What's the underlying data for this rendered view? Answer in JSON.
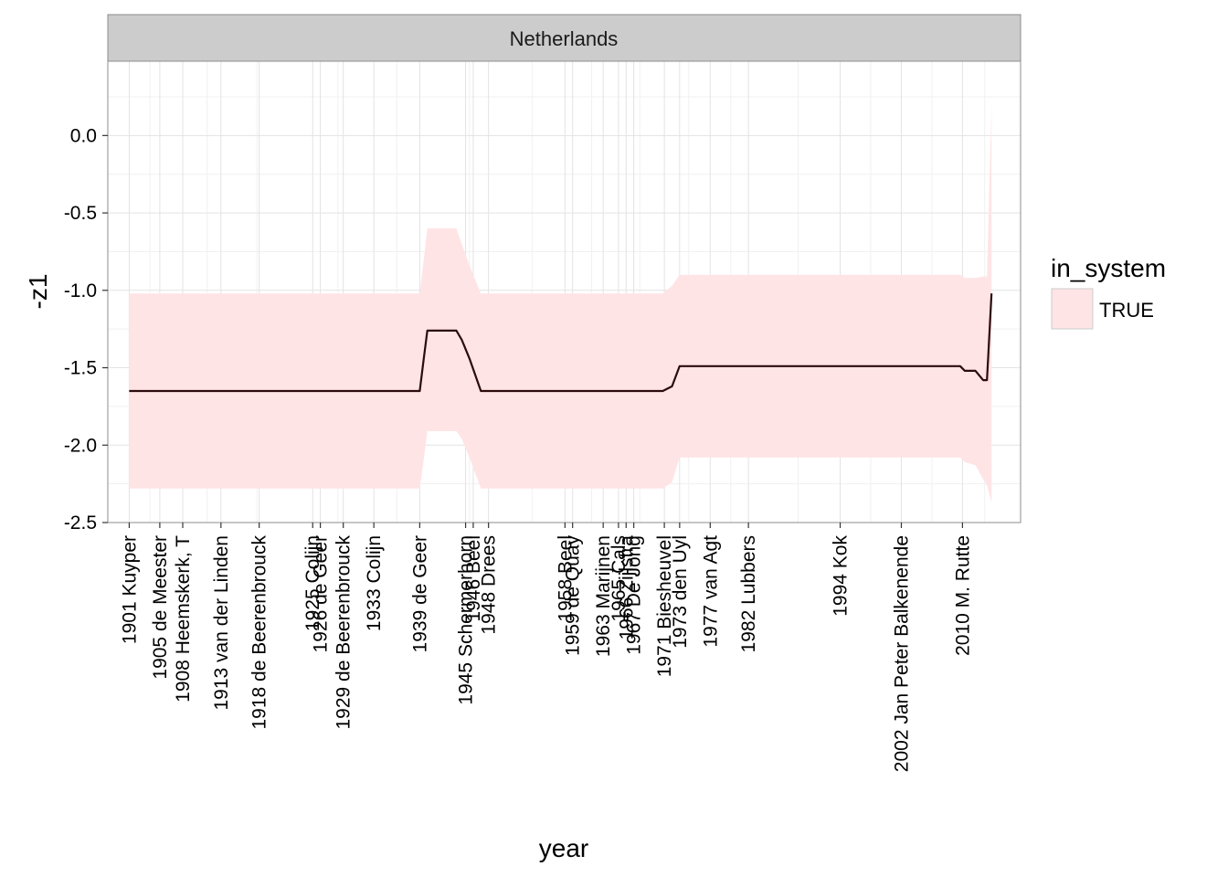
{
  "chart_data": {
    "type": "area",
    "facet": "Netherlands",
    "xlabel": "year",
    "ylabel": "-z1",
    "xlim": [
      1898.2,
      2017.6
    ],
    "ylim": [
      -2.5,
      0.48
    ],
    "yticks": [
      0.0,
      -0.5,
      -1.0,
      -1.5,
      -2.0,
      -2.5
    ],
    "ytick_labels": [
      "0.0",
      "-0.5",
      "-1.0",
      "-1.5",
      "-2.0",
      "-2.5"
    ],
    "x_minor_breaks": [
      1903.7,
      1911.2,
      1917.7,
      1928.3,
      1936.0,
      1945.5,
      1953.7,
      1961.5,
      1967.8,
      1974.2,
      1979.7,
      1988.5,
      1998.0,
      2006.0,
      2012.9
    ],
    "xticks": [
      {
        "x": 1901,
        "label": "1901 Kuyper"
      },
      {
        "x": 1905,
        "label": "1905 de Meester"
      },
      {
        "x": 1908,
        "label": "1908 Heemskerk, T"
      },
      {
        "x": 1913,
        "label": "1913 van der Linden"
      },
      {
        "x": 1918,
        "label": "1918 de Beerenbrouck"
      },
      {
        "x": 1925,
        "label": "1925 Colijn"
      },
      {
        "x": 1926,
        "label": "1926 de Geer"
      },
      {
        "x": 1929,
        "label": "1929 de Beerenbrouck"
      },
      {
        "x": 1933,
        "label": "1933 Colijn"
      },
      {
        "x": 1939,
        "label": "1939 de Geer"
      },
      {
        "x": 1945,
        "label": "1945 Schermerhorn"
      },
      {
        "x": 1946,
        "label": "1946 Beel"
      },
      {
        "x": 1948,
        "label": "1948 Drees"
      },
      {
        "x": 1958,
        "label": "1958 Beel"
      },
      {
        "x": 1959,
        "label": "1959 de Quay"
      },
      {
        "x": 1963,
        "label": "1963 Marijnen"
      },
      {
        "x": 1965,
        "label": "1965 Cals"
      },
      {
        "x": 1966,
        "label": "1966 Zijlstra"
      },
      {
        "x": 1967,
        "label": "1967 De Jong"
      },
      {
        "x": 1971,
        "label": "1971 Biesheuvel"
      },
      {
        "x": 1973,
        "label": "1973 den Uyl"
      },
      {
        "x": 1977,
        "label": "1977 van Agt"
      },
      {
        "x": 1982,
        "label": "1982 Lubbers"
      },
      {
        "x": 1994,
        "label": "1994 Kok"
      },
      {
        "x": 2002,
        "label": "2002 Jan Peter Balkenende"
      },
      {
        "x": 2010,
        "label": "2010 M. Rutte"
      }
    ],
    "series": [
      {
        "legend_group": "TRUE",
        "x": [
          1901,
          1939,
          1939.5,
          1940,
          1943.8,
          1944.5,
          1945.5,
          1947,
          1948,
          1970.8,
          1972,
          1973,
          2009.7,
          2010.3,
          2011.7,
          2012.7,
          2013.2,
          2013.8
        ],
        "y": [
          -1.65,
          -1.65,
          -1.45,
          -1.26,
          -1.26,
          -1.32,
          -1.44,
          -1.65,
          -1.65,
          -1.65,
          -1.62,
          -1.49,
          -1.49,
          -1.52,
          -1.52,
          -1.58,
          -1.58,
          -1.02
        ],
        "upper": [
          -1.02,
          -1.02,
          -0.81,
          -0.6,
          -0.6,
          -0.7,
          -0.84,
          -1.02,
          -1.02,
          -1.02,
          -0.97,
          -0.9,
          -0.9,
          -0.92,
          -0.92,
          -0.91,
          -0.91,
          0.2
        ],
        "lower": [
          -2.28,
          -2.28,
          -2.1,
          -1.91,
          -1.91,
          -1.96,
          -2.08,
          -2.28,
          -2.28,
          -2.28,
          -2.24,
          -2.08,
          -2.08,
          -2.11,
          -2.13,
          -2.22,
          -2.26,
          -2.37
        ]
      }
    ],
    "legend": {
      "title": "in_system",
      "entries": [
        {
          "label": "TRUE",
          "fill": "#FFE4E6"
        }
      ],
      "position": "right"
    },
    "colors": {
      "ribbon_fill": "#FFE4E6",
      "line": "#2B0B0B",
      "strip_fill": "#CCCCCC",
      "panel_border": "#8C8C8C",
      "grid_major": "#E3E3E3",
      "grid_minor": "#F1F1F1"
    },
    "grid": true
  }
}
